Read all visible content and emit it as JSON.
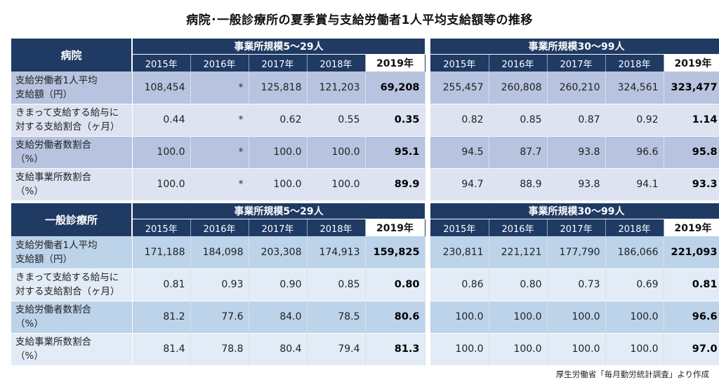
{
  "title": "病院･一般診療所の夏季賞与支給労働者1人平均支給額等の推移",
  "groups": {
    "small": "事業所規模5～29人",
    "large": "事業所規模30～99人"
  },
  "years": [
    "2015年",
    "2016年",
    "2017年",
    "2018年",
    "2019年"
  ],
  "tables": [
    {
      "category": "病院",
      "rows": [
        {
          "label": "支給労働者1人平均\n支給額（円）",
          "small": [
            "108,454",
            "*",
            "125,818",
            "121,203",
            "69,208"
          ],
          "large": [
            "255,457",
            "260,808",
            "260,210",
            "324,561",
            "323,477"
          ]
        },
        {
          "label": "きまって支給する給与に\n対する支給割合（ヶ月）",
          "small": [
            "0.44",
            "*",
            "0.62",
            "0.55",
            "0.35"
          ],
          "large": [
            "0.82",
            "0.85",
            "0.87",
            "0.92",
            "1.14"
          ]
        },
        {
          "label": "支給労働者数割合\n（%）",
          "small": [
            "100.0",
            "*",
            "100.0",
            "100.0",
            "95.1"
          ],
          "large": [
            "94.5",
            "87.7",
            "93.8",
            "96.6",
            "95.8"
          ]
        },
        {
          "label": "支給事業所数割合\n（%）",
          "small": [
            "100.0",
            "*",
            "100.0",
            "100.0",
            "89.9"
          ],
          "large": [
            "94.7",
            "88.9",
            "93.8",
            "94.1",
            "93.3"
          ]
        }
      ]
    },
    {
      "category": "一般診療所",
      "rows": [
        {
          "label": "支給労働者1人平均\n支給額（円）",
          "small": [
            "171,188",
            "184,098",
            "203,308",
            "174,913",
            "159,825"
          ],
          "large": [
            "230,811",
            "221,121",
            "177,790",
            "186,066",
            "221,093"
          ]
        },
        {
          "label": "きまって支給する給与に\n対する支給割合（ヶ月）",
          "small": [
            "0.81",
            "0.93",
            "0.90",
            "0.85",
            "0.80"
          ],
          "large": [
            "0.86",
            "0.80",
            "0.73",
            "0.69",
            "0.81"
          ]
        },
        {
          "label": "支給労働者数割合\n（%）",
          "small": [
            "81.2",
            "77.6",
            "84.0",
            "78.5",
            "80.6"
          ],
          "large": [
            "100.0",
            "100.0",
            "100.0",
            "100.0",
            "96.6"
          ]
        },
        {
          "label": "支給事業所数割合\n（%）",
          "small": [
            "81.4",
            "78.8",
            "80.4",
            "79.4",
            "81.3"
          ],
          "large": [
            "100.0",
            "100.0",
            "100.0",
            "100.0",
            "97.0"
          ]
        }
      ]
    }
  ],
  "source": "厚生労働省「毎月勤労統計調査」より作成",
  "colors": {
    "header": "#1f3a63",
    "hospital_row_dark": "#b7c3df",
    "hospital_row_light": "#dde3f1",
    "clinic_row_dark": "#bcd3ea",
    "clinic_row_light": "#e2ecf6"
  }
}
